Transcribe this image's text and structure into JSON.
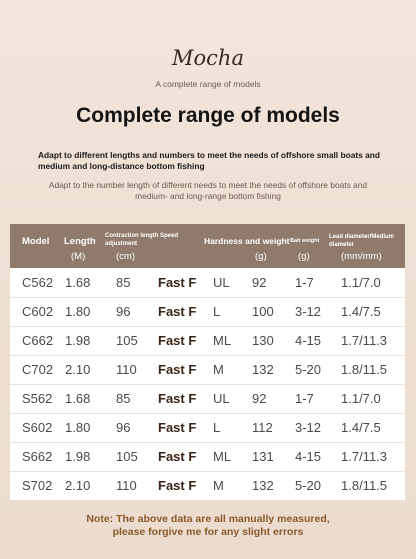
{
  "brand": "Mocha",
  "brand_subtitle": "A complete range of models",
  "headline": "Complete range of models",
  "description_bold": "Adapt to different lengths and numbers to meet the needs of offshore small boats and medium and long-distance bottom fishing",
  "description_light": "Adapt to the number length of different needs to meet the needs of offshore boats and medium- and long-range bottom fishing",
  "table": {
    "headers": {
      "model": "Model",
      "length": "Length",
      "length_unit": "(M)",
      "contraction": "Contraction length Speed adjustment",
      "contraction_unit": "(cm)",
      "hardness": "Hardness and weight",
      "weight_unit": "(g)",
      "bait": "Bait weight",
      "bait_unit": "(g)",
      "lead": "Lead diameter/Medium diameter",
      "lead_unit": "(mm/mm)"
    },
    "rows": [
      {
        "model": "C562",
        "length": "1.68",
        "contraction": "85",
        "speed": "Fast F",
        "hardness": "UL",
        "weight": "92",
        "bait": "1-7",
        "lead": "1.1/7.0"
      },
      {
        "model": "C602",
        "length": "1.80",
        "contraction": "96",
        "speed": "Fast F",
        "hardness": "L",
        "weight": "100",
        "bait": "3-12",
        "lead": "1.4/7.5"
      },
      {
        "model": "C662",
        "length": "1.98",
        "contraction": "105",
        "speed": "Fast F",
        "hardness": "ML",
        "weight": "130",
        "bait": "4-15",
        "lead": "1.7/11.3"
      },
      {
        "model": "C702",
        "length": "2.10",
        "contraction": "110",
        "speed": "Fast F",
        "hardness": "M",
        "weight": "132",
        "bait": "5-20",
        "lead": "1.8/11.5"
      },
      {
        "model": "S562",
        "length": "1.68",
        "contraction": "85",
        "speed": "Fast F",
        "hardness": "UL",
        "weight": "92",
        "bait": "1-7",
        "lead": "1.1/7.0"
      },
      {
        "model": "S602",
        "length": "1.80",
        "contraction": "96",
        "speed": "Fast F",
        "hardness": "L",
        "weight": "112",
        "bait": "3-12",
        "lead": "1.4/7.5"
      },
      {
        "model": "S662",
        "length": "1.98",
        "contraction": "105",
        "speed": "Fast F",
        "hardness": "ML",
        "weight": "131",
        "bait": "4-15",
        "lead": "1.7/11.3"
      },
      {
        "model": "S702",
        "length": "2.10",
        "contraction": "110",
        "speed": "Fast F",
        "hardness": "M",
        "weight": "132",
        "bait": "5-20",
        "lead": "1.8/11.5"
      }
    ]
  },
  "note_line1": "Note: The above data are all manually measured,",
  "note_line2": "please forgive me for any slight errors"
}
